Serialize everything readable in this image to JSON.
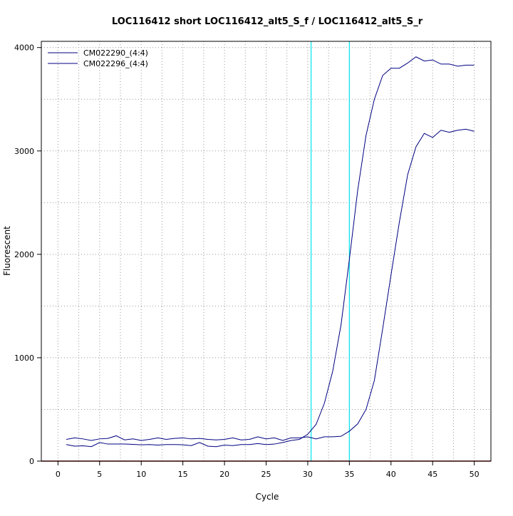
{
  "chart_data": {
    "type": "line",
    "title": "LOC116412 short LOC116412_alt5_S_f / LOC116412_alt5_S_r",
    "xlabel": "Cycle",
    "ylabel": "Fluorescent",
    "xlim": [
      -2,
      52
    ],
    "ylim": [
      0,
      4060
    ],
    "xticks": [
      0,
      5,
      10,
      15,
      20,
      25,
      30,
      35,
      40,
      45,
      50
    ],
    "yticks": [
      0,
      1000,
      2000,
      3000,
      4000
    ],
    "grid": true,
    "legend_position": "top-left",
    "threshold_lines_x": [
      30.4,
      35.0
    ],
    "threshold_color": "#00e5ee",
    "baseline_color": "#8b0000",
    "series": [
      {
        "name": "CM022290_(4:4)",
        "color": "#000080",
        "x": [
          1,
          2,
          3,
          4,
          5,
          6,
          7,
          8,
          9,
          10,
          11,
          12,
          13,
          14,
          15,
          16,
          17,
          18,
          19,
          20,
          21,
          22,
          23,
          24,
          25,
          26,
          27,
          28,
          29,
          30,
          31,
          32,
          33,
          34,
          35,
          36,
          37,
          38,
          39,
          40,
          41,
          42,
          43,
          44,
          45,
          46,
          47,
          48,
          49,
          50
        ],
        "y": [
          160,
          145,
          148,
          140,
          180,
          165,
          165,
          165,
          162,
          158,
          160,
          155,
          160,
          160,
          158,
          150,
          180,
          145,
          140,
          155,
          150,
          160,
          160,
          170,
          160,
          165,
          180,
          200,
          210,
          260,
          355,
          560,
          870,
          1320,
          1950,
          2620,
          3150,
          3500,
          3730,
          3800,
          3800,
          3850,
          3910,
          3870,
          3880,
          3840,
          3840,
          3820,
          3830,
          3830
        ]
      },
      {
        "name": "CM022296_(4:4)",
        "color": "#000080",
        "x": [
          1,
          2,
          3,
          4,
          5,
          6,
          7,
          8,
          9,
          10,
          11,
          12,
          13,
          14,
          15,
          16,
          17,
          18,
          19,
          20,
          21,
          22,
          23,
          24,
          25,
          26,
          27,
          28,
          29,
          30,
          31,
          32,
          33,
          34,
          35,
          36,
          37,
          38,
          39,
          40,
          41,
          42,
          43,
          44,
          45,
          46,
          47,
          48,
          49,
          50
        ],
        "y": [
          210,
          225,
          215,
          200,
          215,
          220,
          245,
          205,
          215,
          200,
          210,
          225,
          210,
          220,
          225,
          215,
          220,
          210,
          205,
          210,
          225,
          205,
          210,
          235,
          215,
          225,
          200,
          225,
          225,
          235,
          215,
          235,
          235,
          240,
          290,
          360,
          500,
          780,
          1280,
          1800,
          2310,
          2770,
          3040,
          3170,
          3130,
          3200,
          3180,
          3200,
          3210,
          3190
        ]
      }
    ]
  }
}
